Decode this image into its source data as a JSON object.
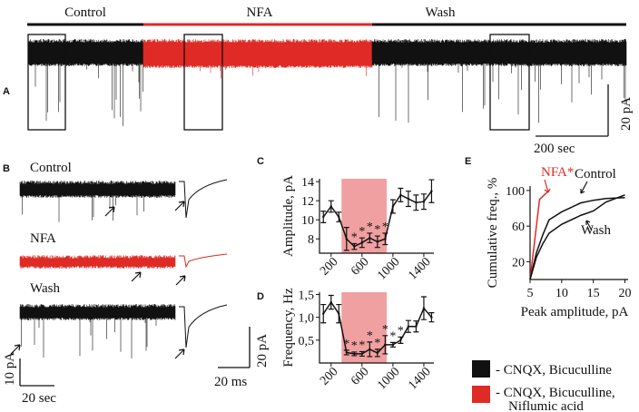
{
  "panels": {
    "a": "A",
    "b": "B",
    "c": "C",
    "d": "D",
    "e": "E"
  },
  "colors": {
    "control": "#111111",
    "nfa": "#e02a25",
    "shade": "#f0a0a0"
  },
  "panel_a": {
    "conditions": [
      "Control",
      "NFA",
      "Wash"
    ],
    "scale_v": "20 pA",
    "scale_h": "200 sec"
  },
  "panel_b": {
    "labels": [
      "Control",
      "NFA",
      "Wash"
    ],
    "scale_v_left": "10 pA",
    "scale_h_left": "20 sec",
    "scale_v_inset": "20 pA",
    "scale_h_inset": "20 ms"
  },
  "legend": {
    "items": [
      {
        "label": "- CNQX, Bicuculline",
        "color": "#111111"
      },
      {
        "label": "- CNQX, Bicuculline,",
        "label2": "Niflumic acid",
        "color": "#e02a25"
      }
    ]
  },
  "chart_data": [
    {
      "type": "line",
      "panel": "C",
      "ylabel": "Amplitude, pA",
      "xlabel": "",
      "x": [
        100,
        200,
        300,
        400,
        500,
        600,
        700,
        800,
        900,
        1000,
        1100,
        1200,
        1300,
        1400,
        1500
      ],
      "values": [
        10.3,
        11.4,
        10.3,
        8.0,
        7.2,
        7.6,
        8.1,
        7.7,
        8.0,
        11.4,
        12.6,
        12.2,
        11.8,
        11.9,
        13.0
      ],
      "errors": [
        0.6,
        0.6,
        0.5,
        1.2,
        0.3,
        0.5,
        0.5,
        0.6,
        0.6,
        0.7,
        0.7,
        0.8,
        0.8,
        0.8,
        1.2
      ],
      "significant_x": [
        500,
        600,
        700,
        800,
        900
      ],
      "shaded_range": [
        335,
        920
      ],
      "xticks": [
        "200",
        "600",
        "1000",
        "1400"
      ],
      "yticks": [
        "8",
        "10",
        "12",
        "14"
      ],
      "ylim": [
        6.5,
        14.3
      ],
      "xlim": [
        50,
        1530
      ]
    },
    {
      "type": "line",
      "panel": "D",
      "ylabel": "Frequency, Hz",
      "xlabel": "",
      "x": [
        100,
        200,
        300,
        400,
        500,
        600,
        700,
        800,
        900,
        1000,
        1100,
        1200,
        1300,
        1400,
        1500
      ],
      "values": [
        1.08,
        1.33,
        1.08,
        0.23,
        0.2,
        0.2,
        0.3,
        0.22,
        0.4,
        0.4,
        0.5,
        0.8,
        0.8,
        1.2,
        1.0
      ],
      "errors": [
        0.2,
        0.15,
        0.2,
        0.05,
        0.04,
        0.05,
        0.16,
        0.08,
        0.2,
        0.05,
        0.07,
        0.13,
        0.12,
        0.25,
        0.1
      ],
      "significant_x": [
        400,
        500,
        600,
        700,
        800,
        900,
        1000,
        1100
      ],
      "shaded_range": [
        335,
        920
      ],
      "xticks": [
        "200",
        "600",
        "1000",
        "1400"
      ],
      "yticks": [
        "0,5",
        "1,0",
        "1,5"
      ],
      "ylim": [
        0,
        1.55
      ],
      "xlim": [
        50,
        1530
      ]
    },
    {
      "type": "line",
      "panel": "E",
      "xlabel": "Peak amplitude, pA",
      "ylabel": "Cumulative freq., %",
      "series": [
        {
          "name": "NFA*",
          "color": "#e02a25",
          "x": [
            5,
            6.5,
            8
          ],
          "y": [
            0,
            90,
            100
          ]
        },
        {
          "name": "Control",
          "color": "#111111",
          "x": [
            5,
            6,
            7,
            8,
            10,
            13,
            15,
            17,
            20
          ],
          "y": [
            0,
            30,
            50,
            67,
            76,
            86,
            89,
            91,
            92
          ]
        },
        {
          "name": "Wash",
          "color": "#111111",
          "x": [
            5,
            6,
            7,
            8,
            10,
            13,
            15,
            17,
            20
          ],
          "y": [
            0,
            25,
            40,
            52,
            62,
            72,
            77,
            87,
            95
          ]
        }
      ],
      "xticks": [
        "5",
        "10",
        "15",
        "20"
      ],
      "yticks": [
        "20",
        "60",
        "100"
      ],
      "xlim": [
        5,
        20.5
      ],
      "ylim": [
        0,
        105
      ]
    }
  ]
}
